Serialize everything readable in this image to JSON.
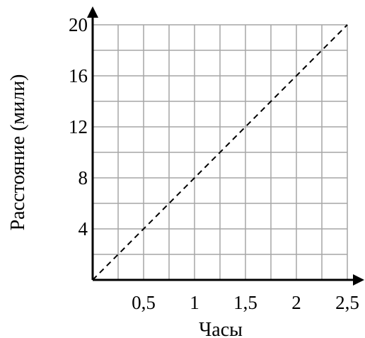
{
  "chart_data": {
    "type": "line",
    "title": "",
    "xlabel": "Часы",
    "ylabel": "Расстояние (мили)",
    "xlim": [
      0,
      2.5
    ],
    "ylim": [
      0,
      20
    ],
    "x_ticks": [
      0.5,
      1,
      1.5,
      2,
      2.5
    ],
    "x_tick_labels": [
      "0,5",
      "1",
      "1,5",
      "2",
      "2,5"
    ],
    "y_ticks": [
      4,
      8,
      12,
      16,
      20
    ],
    "y_tick_labels": [
      "4",
      "8",
      "12",
      "16",
      "20"
    ],
    "grid": true,
    "grid_x_step": 0.25,
    "grid_y_step": 2,
    "series": [
      {
        "x": [
          0,
          2.5
        ],
        "y": [
          0,
          20
        ],
        "style": "dashed",
        "color": "#000000"
      }
    ],
    "colors": {
      "grid": "#a6a6a6",
      "axis": "#000000",
      "line": "#000000"
    }
  }
}
